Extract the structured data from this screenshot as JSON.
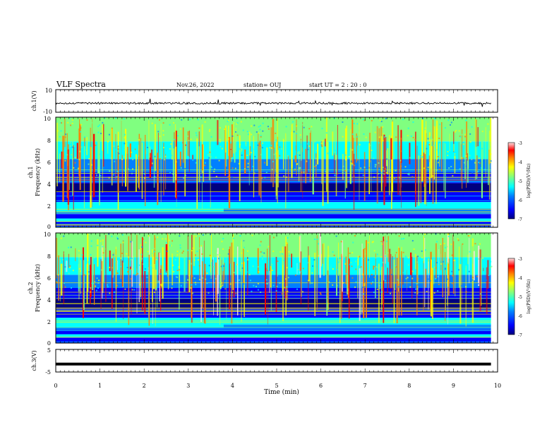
{
  "header": {
    "title": "VLF Spectra",
    "date": "Nov.26, 2022",
    "station": "station= OUJ",
    "start": "start UT =  2 : 20 : 0"
  },
  "colors": {
    "colormap": [
      "#00007f",
      "#0000ff",
      "#0080ff",
      "#00ffff",
      "#80ff80",
      "#ffff00",
      "#ff8000",
      "#ff0000",
      "#ffe0e0"
    ]
  },
  "chart_data": [
    {
      "type": "line",
      "panel": "ch1-waveform",
      "ylabel": "ch.1(V)",
      "ylim": [
        -10,
        10
      ],
      "yticks": [
        "10",
        "-10"
      ],
      "baseline": -2,
      "description_values": {
        "noise_amplitude": 0.8,
        "spike_amplitude": 4
      }
    },
    {
      "type": "heatmap",
      "panel": "ch1-spectrogram",
      "ylabel_line1": "ch.1",
      "ylabel_line2": "Frequency (kHz)",
      "ylim": [
        0,
        10
      ],
      "yticks": [
        "0",
        "2",
        "4",
        "6",
        "8",
        "10"
      ],
      "xlim": [
        0,
        10
      ],
      "colorbar": {
        "label": "log(PSD)(V²/Hz)",
        "ticks": [
          "-3",
          "-4",
          "-5",
          "-6",
          "-7"
        ],
        "range": [
          -7,
          -3
        ]
      }
    },
    {
      "type": "heatmap",
      "panel": "ch2-spectrogram",
      "ylabel_line1": "ch.2",
      "ylabel_line2": "Frequency (kHz)",
      "ylim": [
        0,
        10
      ],
      "yticks": [
        "0",
        "2",
        "4",
        "6",
        "8",
        "10"
      ],
      "xlim": [
        0,
        10
      ],
      "colorbar": {
        "label": "log(PSD)(V²/Hz)",
        "ticks": [
          "-3",
          "-4",
          "-5",
          "-6",
          "-7"
        ],
        "range": [
          -7,
          -3
        ]
      }
    },
    {
      "type": "line",
      "panel": "ch3-waveform",
      "ylabel": "ch.3(V)",
      "ylim": [
        -5,
        5
      ],
      "yticks": [
        "5",
        "0",
        "-5"
      ],
      "baseline": -1.5
    }
  ],
  "xaxis": {
    "label": "Time (min)",
    "ticks": [
      "0",
      "1",
      "2",
      "3",
      "4",
      "5",
      "6",
      "7",
      "8",
      "9",
      "10"
    ],
    "data_end": 9.85
  }
}
